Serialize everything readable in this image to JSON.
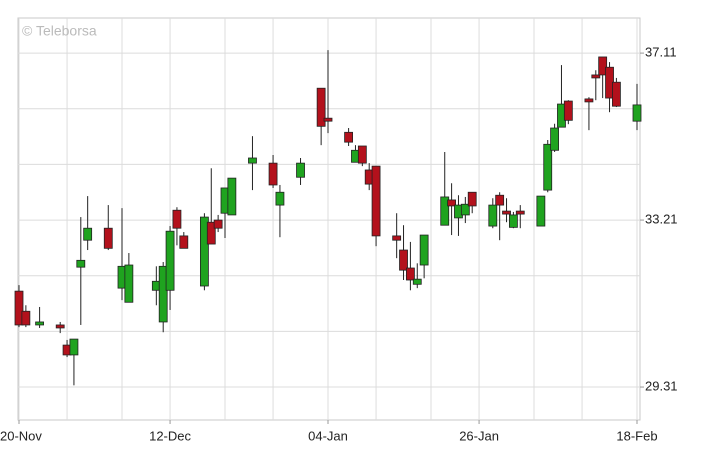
{
  "chart_data": {
    "type": "candlestick",
    "watermark": "© Teleborsa",
    "x": [
      "20-Nov",
      "21-Nov",
      "23-Nov",
      "26-Nov",
      "27-Nov",
      "28-Nov",
      "29-Nov",
      "30-Nov",
      "03-Dec",
      "05-Dec",
      "06-Dec",
      "10-Dec",
      "11-Dec",
      "12-Dec",
      "13-Dec",
      "14-Dec",
      "17-Dec",
      "18-Dec",
      "19-Dec",
      "20-Dec",
      "21-Dec",
      "24-Dec",
      "27-Dec",
      "28-Dec",
      "31-Dec",
      "03-Jan",
      "04-Jan",
      "07-Jan",
      "08-Jan",
      "09-Jan",
      "10-Jan",
      "11-Jan",
      "14-Jan",
      "15-Jan",
      "16-Jan",
      "17-Jan",
      "18-Jan",
      "21-Jan",
      "22-Jan",
      "23-Jan",
      "24-Jan",
      "25-Jan",
      "28-Jan",
      "29-Jan",
      "30-Jan",
      "31-Jan",
      "01-Feb",
      "04-Feb",
      "05-Feb",
      "06-Feb",
      "07-Feb",
      "08-Feb",
      "11-Feb",
      "12-Feb",
      "13-Feb",
      "14-Feb",
      "15-Feb",
      "18-Feb"
    ],
    "open": [
      31.55,
      31.08,
      30.76,
      30.76,
      30.29,
      30.06,
      32.11,
      32.74,
      33.02,
      31.62,
      31.29,
      31.57,
      30.83,
      31.57,
      33.44,
      32.84,
      31.67,
      33.16,
      33.21,
      33.37,
      33.33,
      34.54,
      34.54,
      33.56,
      34.21,
      36.29,
      35.59,
      35.26,
      34.56,
      34.94,
      34.38,
      34.47,
      32.84,
      32.51,
      32.09,
      31.71,
      32.16,
      33.09,
      33.68,
      33.26,
      33.33,
      33.86,
      33.07,
      33.79,
      33.42,
      33.04,
      33.42,
      33.07,
      33.91,
      34.84,
      35.38,
      35.99,
      36.04,
      36.6,
      37.02,
      36.78,
      36.43,
      35.52
    ],
    "high": [
      31.69,
      31.22,
      31.18,
      30.83,
      30.41,
      30.43,
      33.28,
      33.77,
      33.56,
      33.49,
      32.44,
      32.13,
      32.23,
      33.07,
      33.51,
      32.93,
      33.37,
      34.42,
      33.33,
      33.96,
      34.19,
      35.17,
      34.73,
      34.03,
      34.66,
      36.29,
      37.18,
      35.36,
      34.96,
      34.94,
      34.54,
      34.47,
      33.37,
      33.09,
      32.7,
      32.2,
      32.86,
      34.8,
      34.07,
      33.79,
      33.75,
      33.86,
      33.72,
      33.86,
      33.72,
      33.4,
      33.56,
      33.77,
      35.08,
      35.46,
      36.83,
      36.01,
      36.08,
      36.71,
      37.02,
      36.9,
      36.53,
      36.39
    ],
    "low": [
      30.71,
      30.71,
      30.69,
      30.57,
      30.01,
      29.35,
      30.76,
      32.51,
      32.51,
      31.34,
      31.29,
      31.22,
      30.59,
      31.11,
      32.62,
      32.55,
      31.57,
      32.65,
      32.93,
      32.79,
      33.33,
      33.91,
      33.96,
      32.81,
      34.03,
      34.96,
      35.24,
      34.94,
      34.56,
      34.47,
      33.91,
      32.6,
      32.32,
      31.81,
      31.57,
      31.62,
      31.85,
      33.09,
      32.86,
      32.84,
      33.14,
      33.37,
      33.02,
      32.74,
      33.16,
      33.02,
      33.02,
      33.07,
      33.86,
      34.8,
      35.38,
      35.45,
      35.31,
      36.01,
      36.06,
      35.73,
      35.85,
      35.31
    ],
    "close": [
      30.76,
      30.76,
      30.83,
      30.69,
      30.06,
      30.43,
      32.27,
      33.02,
      32.55,
      32.13,
      32.16,
      31.78,
      32.13,
      32.95,
      33.02,
      32.55,
      33.28,
      32.65,
      33.02,
      33.96,
      34.19,
      34.66,
      34.03,
      33.86,
      34.54,
      35.4,
      35.52,
      35.03,
      34.84,
      34.54,
      34.05,
      32.84,
      32.74,
      32.04,
      31.81,
      31.83,
      32.86,
      33.75,
      33.54,
      33.56,
      33.58,
      33.54,
      33.56,
      33.56,
      33.35,
      33.33,
      33.35,
      33.77,
      34.98,
      35.36,
      35.92,
      35.54,
      35.97,
      36.53,
      36.6,
      36.06,
      35.87,
      35.9
    ],
    "up_color": "#1fa31f",
    "down_color": "#b3111c",
    "ylim": [
      28.54,
      37.93
    ],
    "yticks": [
      29.31,
      33.21,
      37.11
    ],
    "ygrid": [
      29.31,
      30.61,
      31.91,
      33.21,
      34.51,
      35.81,
      37.11
    ],
    "xlim": [
      "20-Nov",
      "18-Feb"
    ],
    "xticks": [
      "20-Nov",
      "12-Dec",
      "04-Jan",
      "26-Jan",
      "18-Feb"
    ],
    "xgrid": [
      "20-Nov",
      "27-Nov",
      "05-Dec",
      "12-Dec",
      "20-Dec",
      "27-Dec",
      "04-Jan",
      "11-Jan",
      "19-Jan",
      "26-Jan",
      "03-Feb",
      "10-Feb",
      "18-Feb"
    ],
    "grid": true
  }
}
